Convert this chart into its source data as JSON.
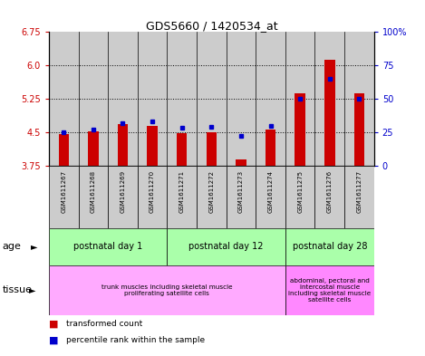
{
  "title": "GDS5660 / 1420534_at",
  "samples": [
    "GSM1611267",
    "GSM1611268",
    "GSM1611269",
    "GSM1611270",
    "GSM1611271",
    "GSM1611272",
    "GSM1611273",
    "GSM1611274",
    "GSM1611275",
    "GSM1611276",
    "GSM1611277"
  ],
  "transformed_count": [
    4.45,
    4.52,
    4.68,
    4.65,
    4.48,
    4.5,
    3.88,
    4.56,
    5.37,
    6.12,
    5.37
  ],
  "percentile_rank": [
    25,
    27,
    32,
    33,
    28,
    29,
    22,
    30,
    50,
    65,
    50
  ],
  "y_min": 3.75,
  "y_max": 6.75,
  "y_ticks_left": [
    3.75,
    4.5,
    5.25,
    6.0,
    6.75
  ],
  "y_ticks_right": [
    0,
    25,
    50,
    75,
    100
  ],
  "right_y_labels": [
    "0",
    "25",
    "50",
    "75",
    "100%"
  ],
  "grid_values": [
    4.5,
    5.25,
    6.0
  ],
  "bar_color": "#cc0000",
  "dot_color": "#0000cc",
  "age_groups": [
    {
      "label": "postnatal day 1",
      "start": 0,
      "end": 3
    },
    {
      "label": "postnatal day 12",
      "start": 4,
      "end": 7
    },
    {
      "label": "postnatal day 28",
      "start": 8,
      "end": 10
    }
  ],
  "tissue_groups": [
    {
      "label": "trunk muscles including skeletal muscle\nproliferating satellite cells",
      "start": 0,
      "end": 7
    },
    {
      "label": "abdominal, pectoral and\nintercostal muscle\nincluding skeletal muscle\nsatellite cells",
      "start": 8,
      "end": 10
    }
  ],
  "age_color": "#aaffaa",
  "tissue_color_1": "#ffaaff",
  "tissue_color_2": "#ff88ff",
  "sample_bg_color": "#cccccc",
  "chart_bg": "#ffffff",
  "legend_items": [
    {
      "color": "#cc0000",
      "label": "transformed count"
    },
    {
      "color": "#0000cc",
      "label": "percentile rank within the sample"
    }
  ]
}
